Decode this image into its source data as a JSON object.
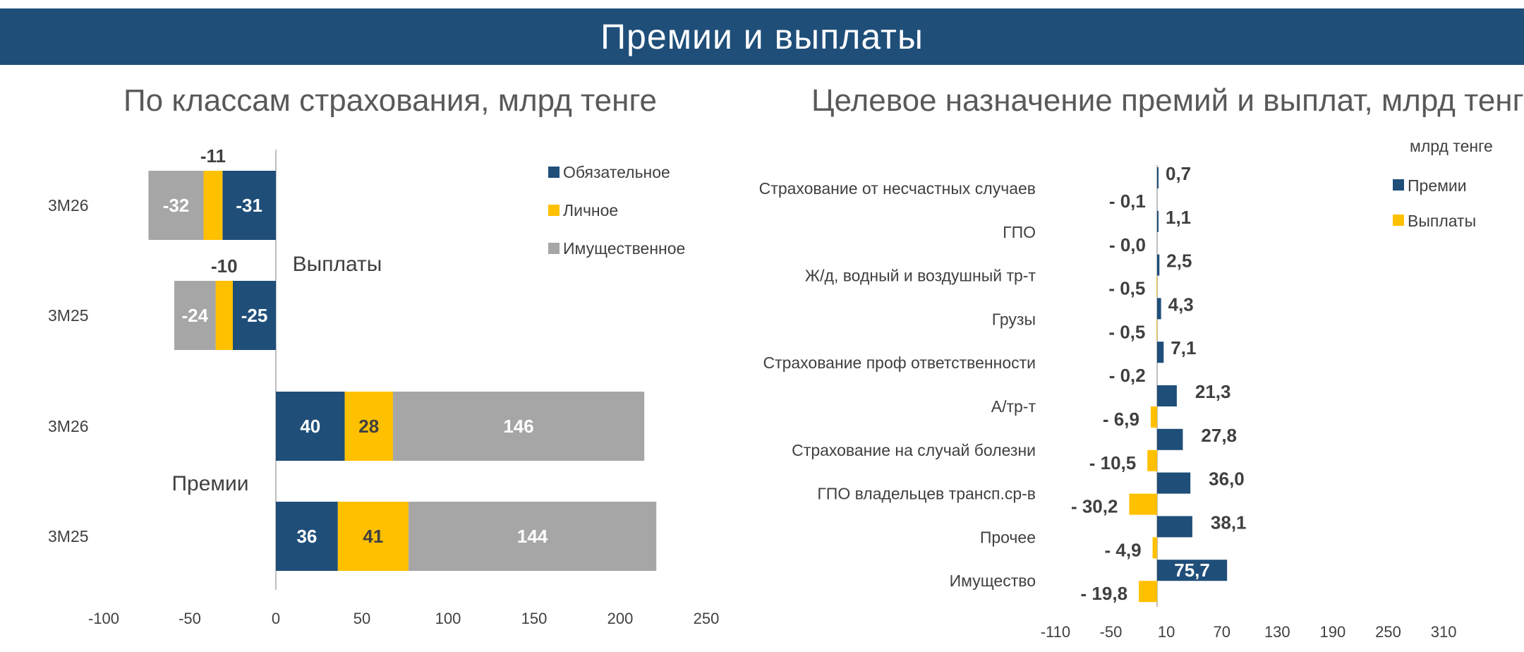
{
  "header": {
    "title": "Премии и выплаты"
  },
  "chart_data": [
    {
      "type": "bar",
      "orientation": "horizontal",
      "stacked": true,
      "title": "По классам страхования, млрд тенге",
      "groups": [
        {
          "label": "Выплаты",
          "rows": [
            {
              "category": "3М26",
              "values": [
                -31,
                -11,
                -32
              ]
            },
            {
              "category": "3М25",
              "values": [
                -25,
                -10,
                -24
              ]
            }
          ]
        },
        {
          "label": "Премии",
          "rows": [
            {
              "category": "3М26",
              "values": [
                40,
                28,
                146
              ]
            },
            {
              "category": "3М25",
              "values": [
                36,
                41,
                144
              ]
            }
          ]
        }
      ],
      "series": [
        {
          "name": "Обязательное",
          "color": "#1f4e79"
        },
        {
          "name": "Личное",
          "color": "#ffc000"
        },
        {
          "name": "Имущественное",
          "color": "#a6a6a6"
        }
      ],
      "xticks": [
        "-100",
        "-50",
        "0",
        "50",
        "100",
        "150",
        "200",
        "250"
      ],
      "xlim": [
        -100,
        250
      ],
      "legend": "top-right"
    },
    {
      "type": "bar",
      "orientation": "horizontal",
      "title": "Целевое назначение премий и выплат, млрд тенге",
      "unit_label": "млрд тенге",
      "categories": [
        "Страхование от несчастных случаев",
        "ГПО",
        "Ж/д, водный и воздушный тр-т",
        "Грузы",
        "Страхование проф ответственности",
        "А/тр-т",
        "Страхование на случай болезни",
        "ГПО владельцев трансп.ср-в",
        "Прочее",
        "Имущество"
      ],
      "series": [
        {
          "name": "Премии",
          "color": "#1f4e79",
          "values": [
            0.7,
            1.1,
            2.5,
            4.3,
            7.1,
            21.3,
            27.8,
            36.0,
            38.1,
            75.7
          ],
          "labels": [
            "0,7",
            "1,1",
            "2,5",
            "4,3",
            "7,1",
            "21,3",
            "27,8",
            "36,0",
            "38,1",
            "75,7"
          ]
        },
        {
          "name": "Выплаты",
          "color": "#ffc000",
          "values": [
            -0.1,
            -0.0,
            -0.5,
            -0.5,
            -0.2,
            -6.9,
            -10.5,
            -30.2,
            -4.9,
            -19.8
          ],
          "labels": [
            "- 0,1",
            "- 0,0",
            "- 0,5",
            "- 0,5",
            "- 0,2",
            "- 6,9",
            "- 10,5",
            "- 30,2",
            "- 4,9",
            "- 19,8"
          ]
        }
      ],
      "xticks": [
        "-110",
        "-50",
        "10",
        "70",
        "130",
        "190",
        "250",
        "310"
      ],
      "xlim": [
        -110,
        310
      ],
      "legend": "top-right"
    }
  ]
}
